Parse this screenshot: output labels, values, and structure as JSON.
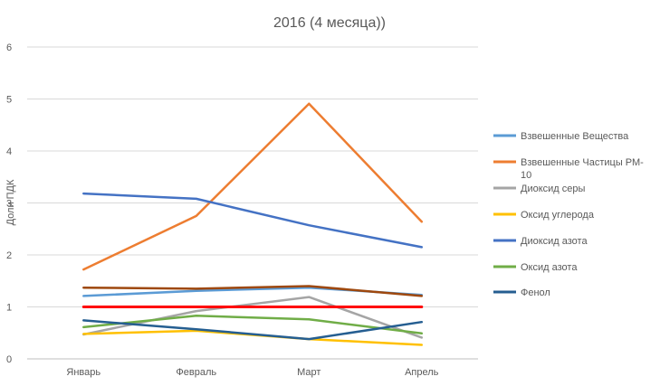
{
  "chart_data": {
    "type": "line",
    "title": "2016 (4 месяца))",
    "xlabel": "",
    "ylabel": "Доли ПДК",
    "categories": [
      "Январь",
      "Февраль",
      "Март",
      "Апрель"
    ],
    "ylim": [
      0,
      6
    ],
    "yticks": [
      "0",
      "1",
      "2",
      "3",
      "4",
      "5",
      "6"
    ],
    "grid": true,
    "legend_position": "right",
    "series": [
      {
        "name": "Взвешенные Вещества",
        "color": "#5b9bd5",
        "values": [
          1.21,
          1.31,
          1.37,
          1.23
        ],
        "legend": true
      },
      {
        "name": "Взвешенные Частицы РМ-10",
        "color": "#ed7d31",
        "values": [
          1.72,
          2.75,
          4.91,
          2.64
        ],
        "legend": true
      },
      {
        "name": "Диоксид серы",
        "color": "#a5a5a5",
        "values": [
          0.47,
          0.92,
          1.19,
          0.41
        ],
        "legend": true
      },
      {
        "name": "Оксид углерода",
        "color": "#ffc000",
        "values": [
          0.48,
          0.54,
          0.38,
          0.27
        ],
        "legend": true
      },
      {
        "name": "Диоксид азота",
        "color": "#4472c4",
        "values": [
          3.18,
          3.08,
          2.57,
          2.15
        ],
        "legend": true
      },
      {
        "name": "Оксид азота",
        "color": "#70ad47",
        "values": [
          0.61,
          0.83,
          0.76,
          0.49
        ],
        "legend": true
      },
      {
        "name": "Фенол",
        "color": "#255e91",
        "values": [
          0.74,
          0.57,
          0.38,
          0.71
        ],
        "legend": true
      },
      {
        "name": "",
        "color": "#9e480e",
        "values": [
          1.37,
          1.35,
          1.4,
          1.21
        ],
        "legend": false
      },
      {
        "name": "",
        "color": "#ff0000",
        "values": [
          1.0,
          1.0,
          1.0,
          1.0
        ],
        "legend": false
      }
    ]
  }
}
